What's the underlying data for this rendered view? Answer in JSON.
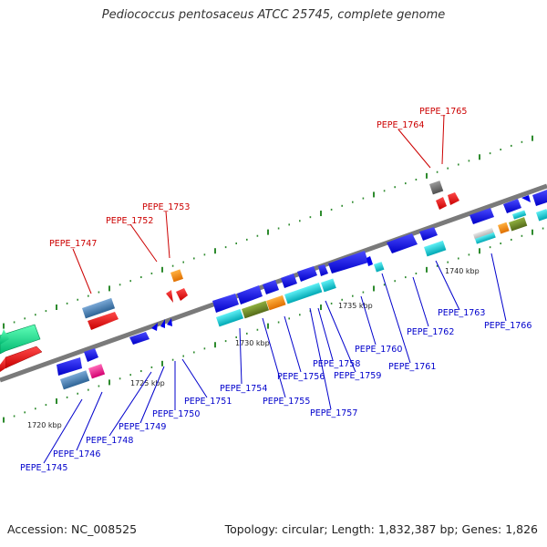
{
  "title": "Pediococcus pentosaceus ATCC 25745, complete genome",
  "footer": {
    "accession": "Accession: NC_008525",
    "summary": "Topology: circular; Length: 1,832,387 bp; Genes: 1,826"
  },
  "colors": {
    "backbone": "#808080",
    "ruler_ticks": "#2e8b2e",
    "red_label": "#cc0000",
    "blue_label": "#0000cc",
    "gene_blue": "#0000ee",
    "gene_red": "#ee0000",
    "gene_cyan": "#00c8d2",
    "gene_orange": "#ff8c00",
    "gene_olive": "#6b8e23",
    "gene_steel": "#4682b4",
    "gene_pink": "#ff1493",
    "gene_gray": "#696969",
    "gene_spring": "#00e08a"
  },
  "ruler": [
    "1720 kbp",
    "1725 kbp",
    "1730 kbp",
    "1735 kbp",
    "1740 kbp"
  ],
  "genes": {
    "top": [
      "PEPE_1747",
      "PEPE_1752",
      "PEPE_1753",
      "PEPE_1764",
      "PEPE_1765"
    ],
    "bottom": [
      "PEPE_1745",
      "PEPE_1746",
      "PEPE_1748",
      "PEPE_1749",
      "PEPE_1750",
      "PEPE_1751",
      "PEPE_1754",
      "PEPE_1755",
      "PEPE_1756",
      "PEPE_1757",
      "PEPE_1758",
      "PEPE_1759",
      "PEPE_1760",
      "PEPE_1761",
      "PEPE_1762",
      "PEPE_1763",
      "PEPE_1766"
    ]
  }
}
